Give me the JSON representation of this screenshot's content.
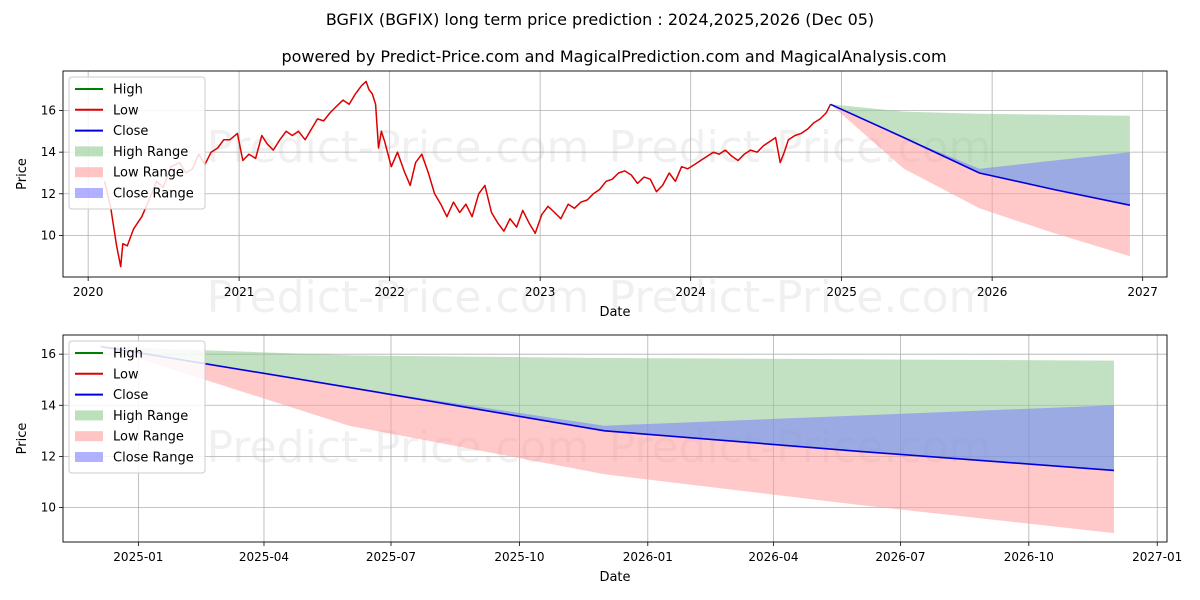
{
  "title": "BGFIX (BGFIX) long term price prediction : 2024,2025,2026 (Dec 05)",
  "subtitle": "powered by Predict-Price.com and MagicalPrediction.com and MagicalAnalysis.com",
  "watermark": "Predict-Price.com",
  "colors": {
    "high": "#008000",
    "low": "#dd0000",
    "close": "#0000dd",
    "high_range": "#8fc98f",
    "low_range": "#ff9c9c",
    "close_range": "#7d7dff"
  },
  "chart_data": [
    {
      "type": "line",
      "xlabel": "Date",
      "ylabel": "Price",
      "grid": true,
      "legend_position": "top-left",
      "x_ticks": [
        "2020",
        "2021",
        "2022",
        "2023",
        "2024",
        "2025",
        "2026",
        "2027"
      ],
      "y_ticks": [
        "10",
        "12",
        "14",
        "16"
      ],
      "xlim": [
        "2019-11-01",
        "2027-03-01"
      ],
      "ylim": [
        8.0,
        17.9
      ],
      "legend": [
        "High",
        "Low",
        "Close",
        "High Range",
        "Low Range",
        "Close Range"
      ],
      "history": {
        "name": "Low",
        "x": [
          "2020-02-10",
          "2020-02-25",
          "2020-03-10",
          "2020-03-20",
          "2020-03-25",
          "2020-04-05",
          "2020-04-20",
          "2020-05-10",
          "2020-06-01",
          "2020-06-15",
          "2020-07-01",
          "2020-07-20",
          "2020-08-10",
          "2020-08-25",
          "2020-09-10",
          "2020-09-25",
          "2020-10-10",
          "2020-10-25",
          "2020-11-10",
          "2020-11-25",
          "2020-12-10",
          "2020-12-28",
          "2021-01-10",
          "2021-01-25",
          "2021-02-10",
          "2021-02-25",
          "2021-03-10",
          "2021-03-25",
          "2021-04-10",
          "2021-04-25",
          "2021-05-10",
          "2021-05-25",
          "2021-06-10",
          "2021-06-25",
          "2021-07-10",
          "2021-07-25",
          "2021-08-10",
          "2021-08-25",
          "2021-09-10",
          "2021-09-25",
          "2021-10-10",
          "2021-10-25",
          "2021-11-05",
          "2021-11-12",
          "2021-11-20",
          "2021-11-28",
          "2021-12-05",
          "2021-12-12",
          "2021-12-20",
          "2022-01-05",
          "2022-01-20",
          "2022-02-05",
          "2022-02-20",
          "2022-03-05",
          "2022-03-20",
          "2022-04-05",
          "2022-04-20",
          "2022-05-05",
          "2022-05-20",
          "2022-06-05",
          "2022-06-20",
          "2022-07-05",
          "2022-07-20",
          "2022-08-05",
          "2022-08-20",
          "2022-09-05",
          "2022-09-20",
          "2022-10-05",
          "2022-10-20",
          "2022-11-05",
          "2022-11-20",
          "2022-12-05",
          "2022-12-20",
          "2023-01-05",
          "2023-01-20",
          "2023-02-05",
          "2023-02-20",
          "2023-03-10",
          "2023-03-25",
          "2023-04-10",
          "2023-04-25",
          "2023-05-10",
          "2023-05-25",
          "2023-06-10",
          "2023-06-25",
          "2023-07-10",
          "2023-07-25",
          "2023-08-10",
          "2023-08-25",
          "2023-09-10",
          "2023-09-25",
          "2023-10-10",
          "2023-10-25",
          "2023-11-10",
          "2023-11-25",
          "2023-12-10",
          "2023-12-25",
          "2024-01-10",
          "2024-01-25",
          "2024-02-10",
          "2024-02-25",
          "2024-03-10",
          "2024-03-25",
          "2024-04-10",
          "2024-04-25",
          "2024-05-10",
          "2024-05-25",
          "2024-06-10",
          "2024-06-25",
          "2024-07-10",
          "2024-07-25",
          "2024-08-05",
          "2024-08-15",
          "2024-08-25",
          "2024-09-10",
          "2024-09-25",
          "2024-10-10",
          "2024-10-25",
          "2024-11-10",
          "2024-11-25",
          "2024-12-05"
        ],
        "y": [
          12.6,
          11.3,
          9.5,
          8.5,
          9.6,
          9.5,
          10.3,
          10.9,
          11.9,
          12.6,
          12.3,
          13.3,
          13.5,
          13.0,
          13.2,
          13.9,
          13.4,
          14.0,
          14.2,
          14.6,
          14.6,
          14.9,
          13.6,
          13.9,
          13.7,
          14.8,
          14.4,
          14.1,
          14.6,
          15.0,
          14.8,
          15.0,
          14.6,
          15.1,
          15.6,
          15.5,
          15.9,
          16.2,
          16.5,
          16.3,
          16.8,
          17.2,
          17.4,
          17.0,
          16.8,
          16.3,
          14.2,
          15.0,
          14.5,
          13.3,
          14.0,
          13.1,
          12.4,
          13.5,
          13.9,
          13.0,
          12.0,
          11.5,
          10.9,
          11.6,
          11.1,
          11.5,
          10.9,
          12.0,
          12.4,
          11.1,
          10.6,
          10.2,
          10.8,
          10.4,
          11.2,
          10.6,
          10.1,
          11.0,
          11.4,
          11.1,
          10.8,
          11.5,
          11.3,
          11.6,
          11.7,
          12.0,
          12.2,
          12.6,
          12.7,
          13.0,
          13.1,
          12.9,
          12.5,
          12.8,
          12.7,
          12.1,
          12.4,
          13.0,
          12.6,
          13.3,
          13.2,
          13.4,
          13.6,
          13.8,
          14.0,
          13.9,
          14.1,
          13.8,
          13.6,
          13.9,
          14.1,
          14.0,
          14.3,
          14.5,
          14.7,
          13.5,
          14.0,
          14.6,
          14.8,
          14.9,
          15.1,
          15.4,
          15.6,
          15.9,
          16.3
        ]
      },
      "forecast": {
        "x": [
          "2024-12-05",
          "2025-06-01",
          "2025-12-01",
          "2026-06-01",
          "2026-12-01"
        ],
        "high_upper": [
          16.3,
          15.95,
          15.85,
          15.8,
          15.75
        ],
        "low_lower": [
          16.3,
          13.2,
          11.3,
          10.1,
          9.0
        ],
        "close": [
          16.3,
          14.7,
          13.0,
          12.2,
          11.45
        ],
        "close_upper": [
          16.3,
          14.7,
          13.2,
          13.6,
          14.0
        ]
      }
    },
    {
      "type": "line",
      "xlabel": "Date",
      "ylabel": "Price",
      "grid": true,
      "legend_position": "top-left",
      "x_ticks": [
        "2025-01",
        "2025-04",
        "2025-07",
        "2025-10",
        "2026-01",
        "2026-04",
        "2026-07",
        "2026-10",
        "2027-01"
      ],
      "y_ticks": [
        "10",
        "12",
        "14",
        "16"
      ],
      "xlim": [
        "2024-11-08",
        "2027-01-08"
      ],
      "ylim": [
        8.65,
        16.75
      ],
      "legend": [
        "High",
        "Low",
        "Close",
        "High Range",
        "Low Range",
        "Close Range"
      ],
      "forecast": {
        "x": [
          "2024-12-05",
          "2025-06-01",
          "2025-12-01",
          "2026-06-01",
          "2026-12-01"
        ],
        "high_upper": [
          16.3,
          15.95,
          15.85,
          15.8,
          15.75
        ],
        "low_lower": [
          16.3,
          13.2,
          11.3,
          10.1,
          9.0
        ],
        "close": [
          16.3,
          14.7,
          13.0,
          12.2,
          11.45
        ],
        "close_upper": [
          16.3,
          14.7,
          13.2,
          13.6,
          14.0
        ]
      }
    }
  ]
}
